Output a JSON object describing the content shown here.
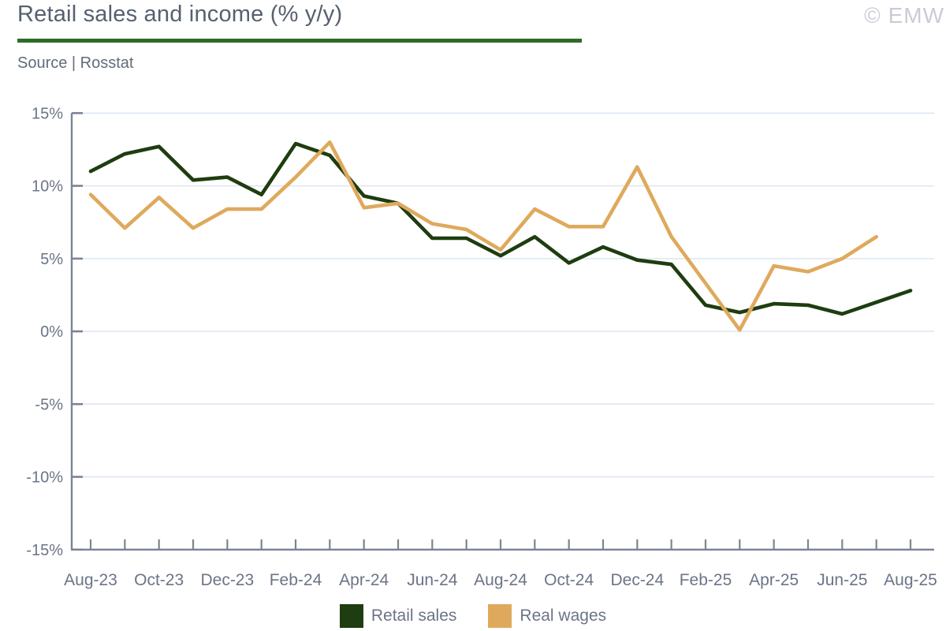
{
  "header": {
    "title": "Retail sales and income (% y/y)",
    "source": "Source | Rosstat",
    "copyright": "© EMW"
  },
  "colors": {
    "accent_rule": "#2f6b26",
    "axis": "#7b8396",
    "gridline": "#dde6f1",
    "tick_label": "#6b7487",
    "retail_sales": "#1e3d10",
    "real_wages": "#dfa95d"
  },
  "chart_data": {
    "type": "line",
    "title": "Retail sales and income (% y/y)",
    "x": [
      "Aug-23",
      "Sep-23",
      "Oct-23",
      "Nov-23",
      "Dec-23",
      "Jan-24",
      "Feb-24",
      "Mar-24",
      "Apr-24",
      "May-24",
      "Jun-24",
      "Jul-24",
      "Aug-24",
      "Sep-24",
      "Oct-24",
      "Nov-24",
      "Dec-24",
      "Jan-25",
      "Feb-25",
      "Mar-25",
      "Apr-25",
      "May-25",
      "Jun-25",
      "Jul-25",
      "Aug-25"
    ],
    "x_tick_labels": [
      "Aug-23",
      "Oct-23",
      "Dec-23",
      "Feb-24",
      "Apr-24",
      "Jun-24",
      "Aug-24",
      "Oct-24",
      "Dec-24",
      "Feb-25",
      "Apr-25",
      "Jun-25",
      "Aug-25"
    ],
    "xlabel": "",
    "ylabel": "",
    "ylim": [
      -15,
      15
    ],
    "y_tick_values": [
      15,
      10,
      5,
      0,
      -5,
      -10,
      -15
    ],
    "y_tick_labels": [
      "15%",
      "10%",
      "5%",
      "0%",
      "-5%",
      "-10%",
      "-15%"
    ],
    "grid": true,
    "legend_position": "bottom",
    "series": [
      {
        "name": "Retail sales",
        "color": "#1e3d10",
        "values": [
          11.0,
          12.2,
          12.7,
          10.4,
          10.6,
          9.4,
          12.9,
          12.1,
          9.3,
          8.8,
          6.4,
          6.4,
          5.2,
          6.5,
          4.7,
          5.8,
          4.9,
          4.6,
          1.8,
          1.3,
          1.9,
          1.8,
          1.2,
          2.0,
          2.8
        ]
      },
      {
        "name": "Real wages",
        "color": "#dfa95d",
        "values": [
          9.4,
          7.1,
          9.2,
          7.1,
          8.4,
          8.4,
          10.6,
          13.0,
          8.5,
          8.8,
          7.4,
          7.0,
          5.6,
          8.4,
          7.2,
          7.2,
          11.3,
          6.5,
          3.3,
          0.1,
          4.5,
          4.1,
          5.0,
          6.5,
          null
        ]
      }
    ]
  }
}
